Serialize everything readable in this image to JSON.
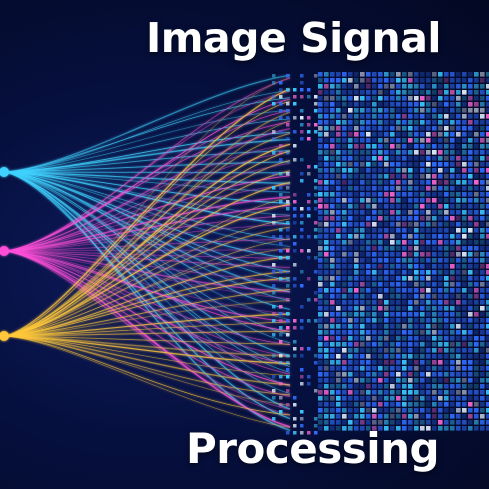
{
  "title": {
    "line1": "Image Signal",
    "line2": "Processing"
  },
  "palette": {
    "background_deep": "#030822",
    "background_mid": "#0d1a5c",
    "stream_cyan": "#3fd2ff",
    "stream_magenta": "#ff4fd8",
    "stream_gold": "#ffc83a",
    "matrix_blue": "#2f6dff",
    "matrix_cyan": "#39c8ff",
    "matrix_pink": "#ff6ad5",
    "matrix_white": "#e6f2ff"
  },
  "streams": [
    {
      "name": "cyan-stream",
      "color_key": "stream_cyan"
    },
    {
      "name": "magenta-stream",
      "color_key": "stream_magenta"
    },
    {
      "name": "gold-stream",
      "color_key": "stream_gold"
    }
  ]
}
